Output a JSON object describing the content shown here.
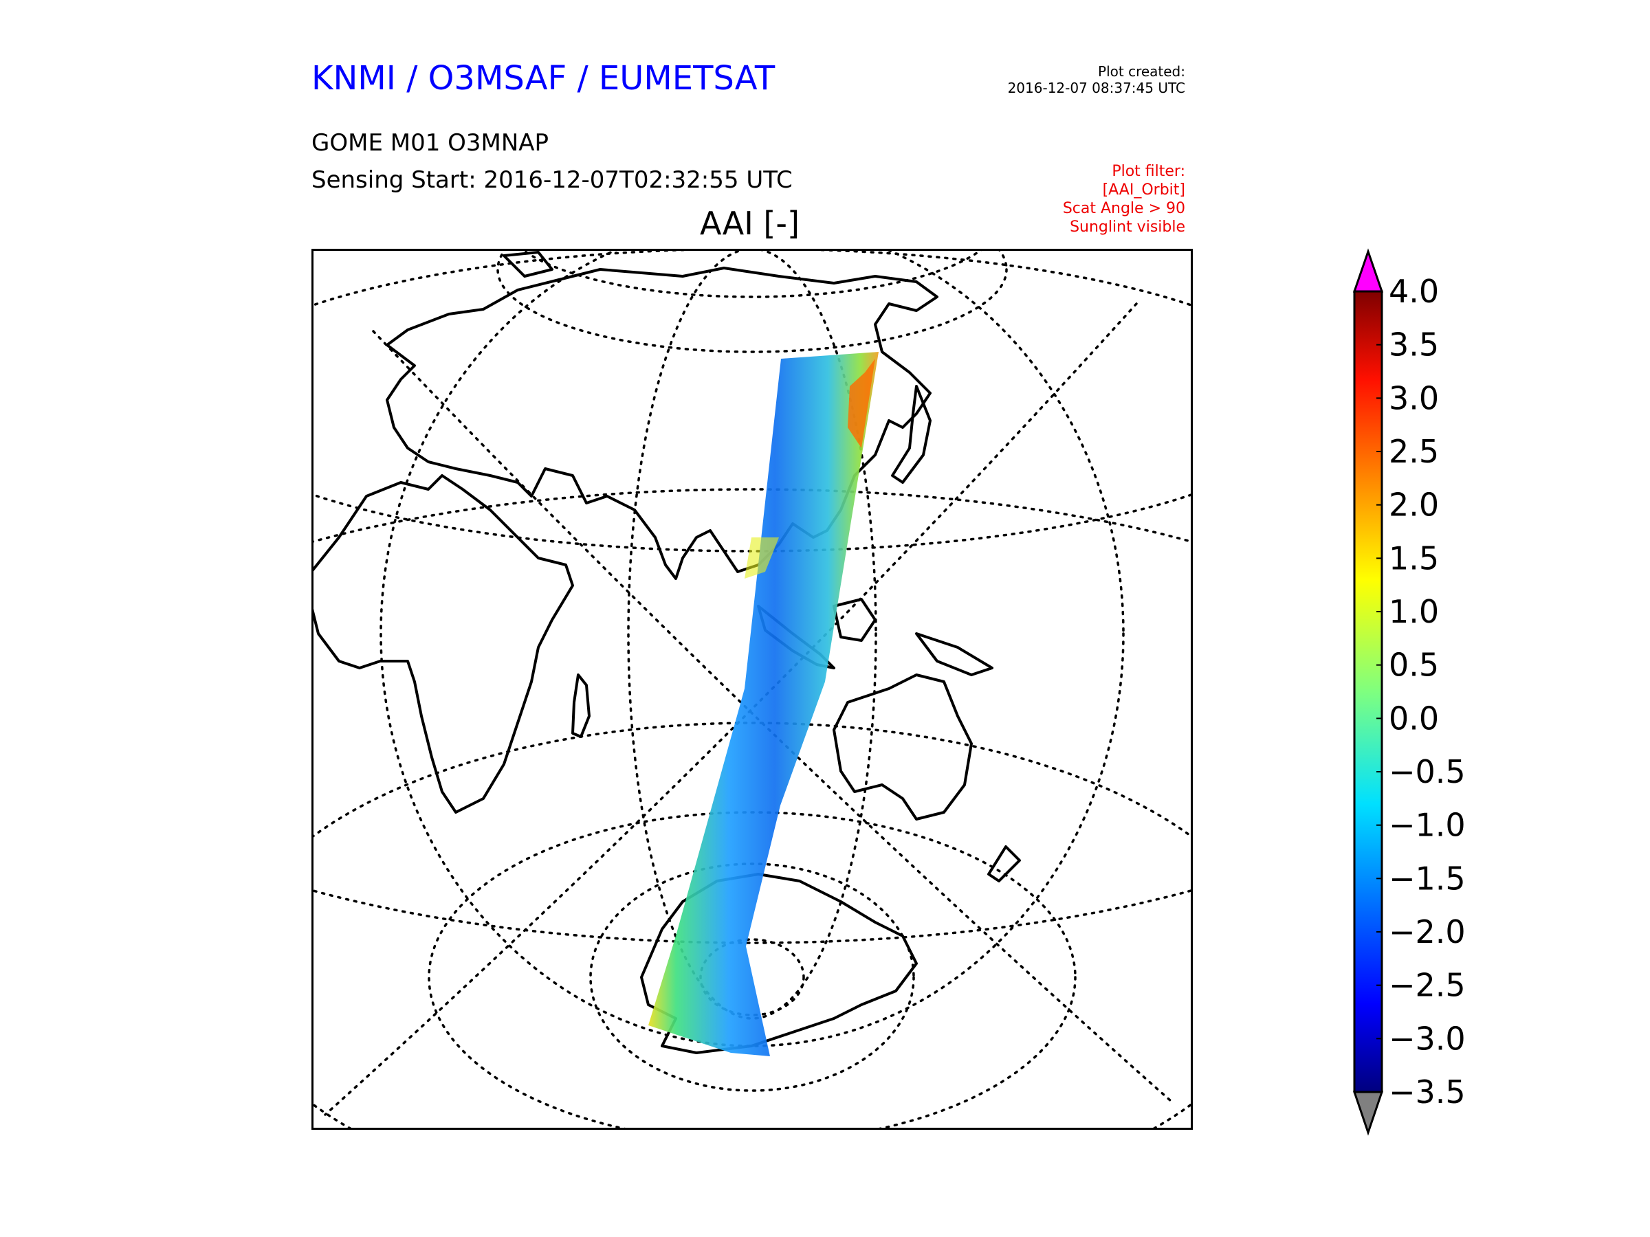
{
  "header": {
    "org_title": "KNMI / O3MSAF / EUMETSAT",
    "product": "GOME M01 O3MNAP",
    "sensing_start": "Sensing Start: 2016-12-07T02:32:55 UTC",
    "plot_title": "AAI [-]",
    "created_label": "Plot created:",
    "created_value": "2016-12-07 08:37:45 UTC"
  },
  "filters": [
    "Plot filter:",
    "[AAI_Orbit]",
    "Scat Angle > 90",
    "Sunglint visible"
  ],
  "map": {
    "projection": "orthographic",
    "graticule": "dotted",
    "swath": "single satellite orbit strip from Antarctica to eastern Asia",
    "land_outline_color": "#000000"
  },
  "colorbar": {
    "min": -3.5,
    "max": 4.0,
    "ticks": [
      "4.0",
      "3.5",
      "3.0",
      "2.5",
      "2.0",
      "1.5",
      "1.0",
      "0.5",
      "0.0",
      "−0.5",
      "−1.0",
      "−1.5",
      "−2.0",
      "−2.5",
      "−3.0",
      "−3.5"
    ],
    "over_color": "#ff00ff",
    "under_color": "#808080",
    "colormap": "jet"
  }
}
